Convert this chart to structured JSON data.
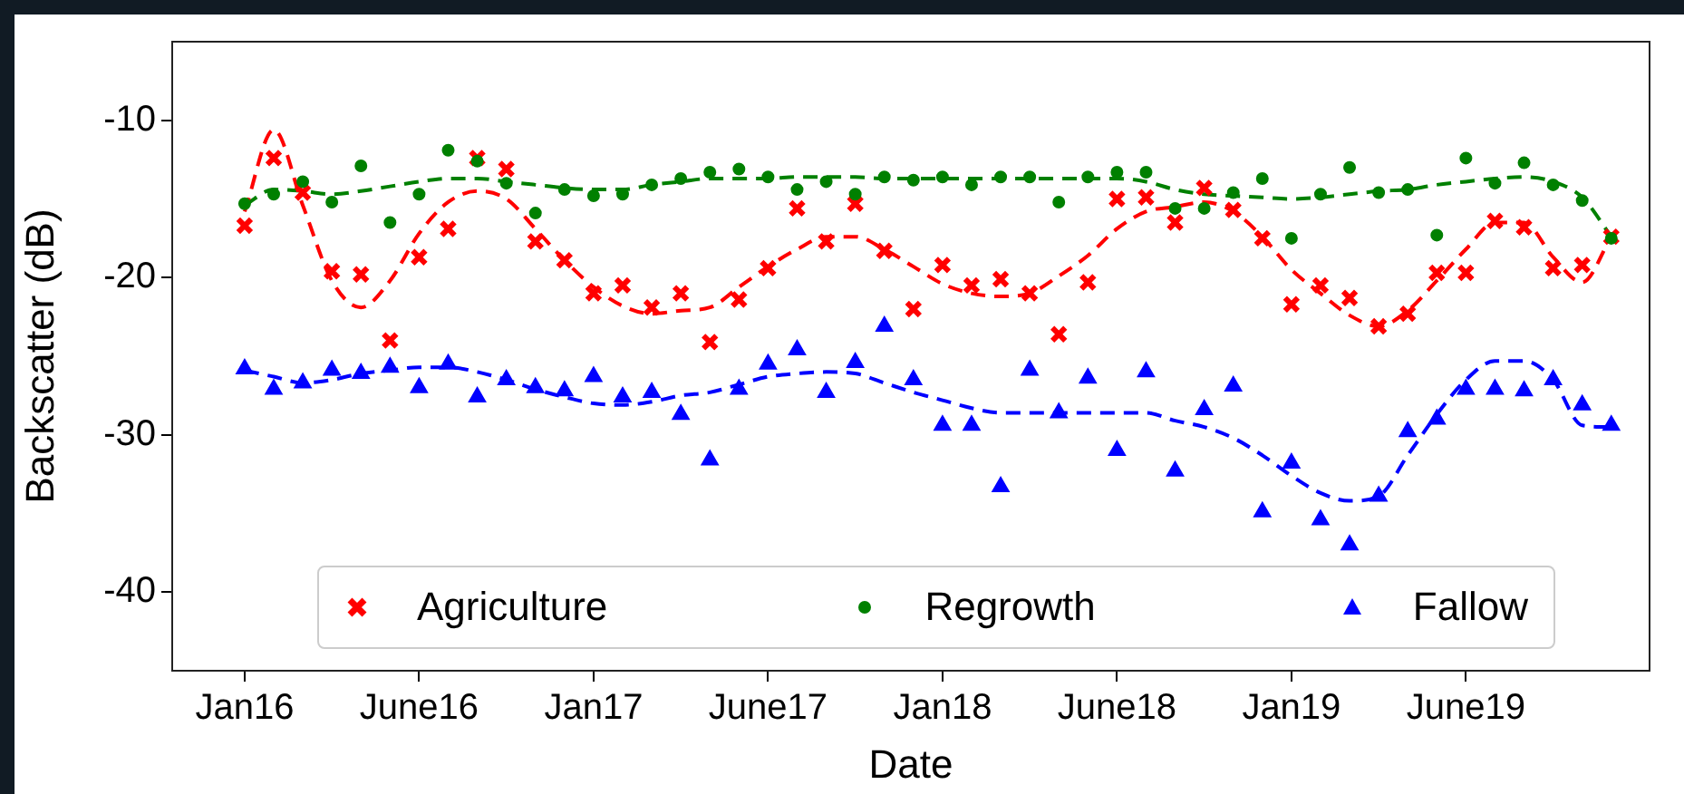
{
  "chart_data": {
    "type": "scatter",
    "xlabel": "Date",
    "ylabel": "Backscatter (dB)",
    "categories": [
      "Jan16",
      null,
      null,
      null,
      null,
      null,
      "June16",
      null,
      null,
      null,
      null,
      null,
      "Jan17",
      null,
      null,
      null,
      null,
      null,
      "June17",
      null,
      null,
      null,
      null,
      null,
      "Jan18",
      null,
      null,
      null,
      null,
      null,
      "June18",
      null,
      null,
      null,
      null,
      null,
      "Jan19",
      null,
      null,
      null,
      null,
      null,
      "June19",
      null,
      null,
      null,
      null,
      null
    ],
    "ylim": [
      -45,
      -5
    ],
    "yticks": [
      -40,
      -30,
      -20,
      -10
    ],
    "grid": false,
    "legend": "bottom",
    "series": [
      {
        "name": "Agriculture",
        "marker": "cross",
        "color": "#ff0000",
        "values": [
          -16.7,
          -12.4,
          -14.6,
          -19.6,
          -19.8,
          -24.0,
          -18.7,
          -16.9,
          -12.4,
          -13.1,
          -17.7,
          -18.9,
          -21.0,
          -20.5,
          -21.9,
          -21.0,
          -24.1,
          -21.4,
          -19.4,
          -15.6,
          -17.7,
          -15.3,
          -18.3,
          -22.0,
          -19.2,
          -20.5,
          -20.1,
          -21.0,
          -23.6,
          -20.3,
          -15.0,
          -14.9,
          -16.5,
          -14.3,
          -15.7,
          -17.5,
          -21.7,
          -20.5,
          -21.3,
          -23.1,
          -22.3,
          -19.7,
          -19.7,
          -16.4,
          -16.8,
          -19.4,
          -19.2,
          -17.4
        ]
      },
      {
        "name": "Regrowth",
        "marker": "circle",
        "color": "#008000",
        "values": [
          -15.3,
          -14.7,
          -13.9,
          -15.2,
          -12.9,
          -16.5,
          -14.7,
          -11.9,
          -12.6,
          -14.0,
          -15.9,
          -14.4,
          -14.8,
          -14.7,
          -14.1,
          -13.7,
          -13.3,
          -13.1,
          -13.6,
          -14.4,
          -13.9,
          -14.7,
          -13.6,
          -13.8,
          -13.6,
          -14.1,
          -13.6,
          -13.6,
          -15.2,
          -13.6,
          -13.3,
          -13.3,
          -15.6,
          -15.6,
          -14.6,
          -13.7,
          -17.5,
          -14.7,
          -13.0,
          -14.6,
          -14.4,
          -17.3,
          -12.4,
          -14.0,
          -12.7,
          -14.1,
          -15.1,
          -17.5
        ]
      },
      {
        "name": "Fallow",
        "marker": "triangle",
        "color": "#0000ff",
        "values": [
          -25.8,
          -27.1,
          -26.7,
          -25.9,
          -26.1,
          -25.7,
          -27.0,
          -25.5,
          -27.6,
          -26.5,
          -27.0,
          -27.2,
          -26.3,
          -27.6,
          -27.3,
          -28.7,
          -31.6,
          -27.1,
          -25.5,
          -24.6,
          -27.3,
          -25.4,
          -23.1,
          -26.5,
          -29.4,
          -29.4,
          -33.3,
          -25.9,
          -28.6,
          -26.4,
          -31.0,
          -26.0,
          -32.3,
          -28.4,
          -26.9,
          -34.9,
          -31.8,
          -35.4,
          -37.0,
          -33.9,
          -29.8,
          -29.0,
          -27.1,
          -27.1,
          -27.2,
          -26.5,
          -28.1,
          -29.4
        ]
      },
      {
        "type": "line",
        "line_style": "dashed",
        "marker": "none",
        "color": "#ff0000",
        "values": [
          -15.8,
          -10.6,
          -15.4,
          -20.2,
          -21.9,
          -20.2,
          -17.2,
          -15.2,
          -14.5,
          -15.0,
          -16.9,
          -18.9,
          -20.6,
          -21.8,
          -22.3,
          -22.1,
          -21.9,
          -20.6,
          -19.3,
          -18.2,
          -17.4,
          -17.4,
          -18.2,
          -19.3,
          -20.4,
          -21.0,
          -21.2,
          -21.0,
          -19.9,
          -18.6,
          -16.9,
          -15.8,
          -15.5,
          -15.2,
          -15.8,
          -17.4,
          -19.5,
          -21.0,
          -22.4,
          -23.1,
          -22.1,
          -20.2,
          -18.2,
          -16.5,
          -16.5,
          -18.7,
          -20.3,
          -17.4
        ]
      },
      {
        "type": "line",
        "line_style": "dashed",
        "marker": "none",
        "color": "#008000",
        "values": [
          -15.4,
          -14.4,
          -14.5,
          -14.7,
          -14.5,
          -14.2,
          -13.9,
          -13.7,
          -13.7,
          -13.9,
          -14.1,
          -14.3,
          -14.4,
          -14.4,
          -14.1,
          -13.9,
          -13.7,
          -13.7,
          -13.7,
          -13.6,
          -13.6,
          -13.6,
          -13.7,
          -13.7,
          -13.7,
          -13.7,
          -13.7,
          -13.7,
          -13.7,
          -13.7,
          -13.7,
          -13.9,
          -14.4,
          -14.7,
          -14.8,
          -14.9,
          -15.0,
          -14.9,
          -14.7,
          -14.5,
          -14.4,
          -14.1,
          -13.9,
          -13.7,
          -13.6,
          -13.9,
          -14.9,
          -17.4
        ]
      },
      {
        "type": "line",
        "line_style": "dashed",
        "marker": "none",
        "color": "#0000ff",
        "values": [
          -25.9,
          -26.3,
          -26.7,
          -26.5,
          -26.1,
          -25.9,
          -25.7,
          -25.7,
          -26.0,
          -26.5,
          -27.1,
          -27.6,
          -28.0,
          -28.1,
          -27.9,
          -27.5,
          -27.3,
          -26.8,
          -26.3,
          -26.1,
          -26.0,
          -26.1,
          -26.7,
          -27.3,
          -27.8,
          -28.3,
          -28.6,
          -28.6,
          -28.6,
          -28.6,
          -28.6,
          -28.6,
          -29.1,
          -29.5,
          -30.2,
          -31.3,
          -32.6,
          -33.7,
          -34.2,
          -33.9,
          -31.3,
          -28.7,
          -26.5,
          -25.3,
          -25.3,
          -26.5,
          -29.4,
          -29.5
        ]
      }
    ]
  }
}
